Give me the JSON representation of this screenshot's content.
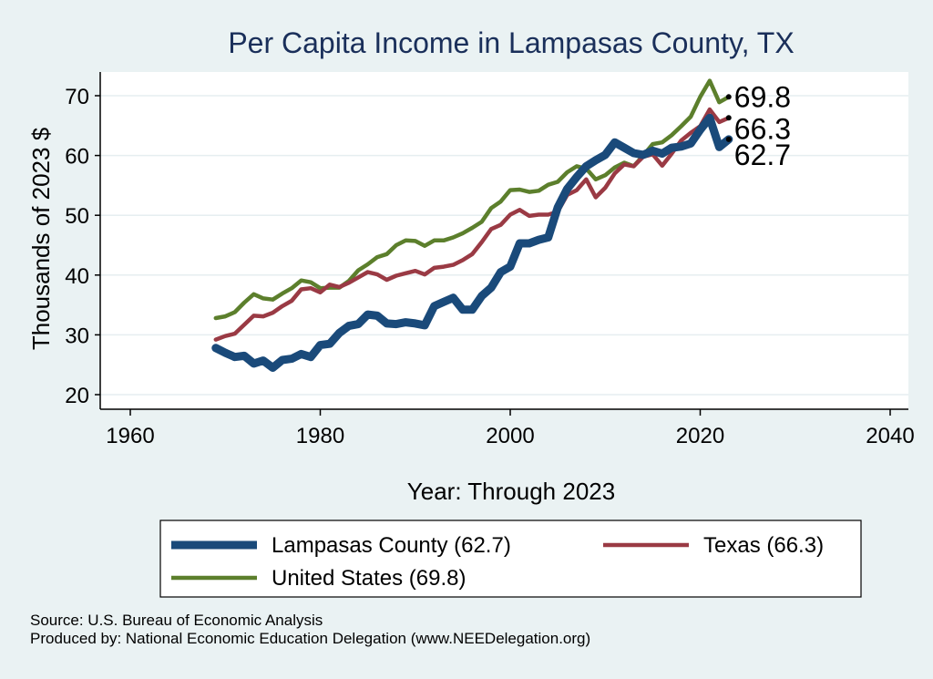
{
  "chart_data": {
    "type": "line",
    "title": "Per Capita Income in Lampasas County, TX",
    "xlabel": "Year: Through 2023",
    "ylabel": "Thousands of 2023 $",
    "xlim": [
      1960,
      2040
    ],
    "ylim": [
      20,
      75
    ],
    "xticks": [
      1960,
      1980,
      2000,
      2020,
      2040
    ],
    "yticks": [
      20,
      30,
      40,
      50,
      60,
      70
    ],
    "grid": true,
    "legend": "bottom",
    "x": [
      1969,
      1970,
      1971,
      1972,
      1973,
      1974,
      1975,
      1976,
      1977,
      1978,
      1979,
      1980,
      1981,
      1982,
      1983,
      1984,
      1985,
      1986,
      1987,
      1988,
      1989,
      1990,
      1991,
      1992,
      1993,
      1994,
      1995,
      1996,
      1997,
      1998,
      1999,
      2000,
      2001,
      2002,
      2003,
      2004,
      2005,
      2006,
      2007,
      2008,
      2009,
      2010,
      2011,
      2012,
      2013,
      2014,
      2015,
      2016,
      2017,
      2018,
      2019,
      2020,
      2021,
      2022,
      2023
    ],
    "series": [
      {
        "name": "Lampasas County (62.7)",
        "color": "#1a4a7a",
        "end_label": "62.7",
        "values": [
          27.8,
          27.0,
          26.3,
          26.5,
          25.2,
          25.7,
          24.5,
          25.8,
          26.0,
          26.8,
          26.3,
          28.3,
          28.5,
          30.3,
          31.5,
          31.8,
          33.4,
          33.2,
          31.9,
          31.8,
          32.1,
          31.9,
          31.6,
          34.8,
          35.5,
          36.2,
          34.2,
          34.2,
          36.5,
          37.9,
          40.5,
          41.4,
          45.3,
          45.3,
          45.9,
          46.3,
          51.3,
          54.4,
          56.4,
          58.2,
          59.2,
          60.1,
          62.2,
          61.3,
          60.4,
          60.1,
          60.8,
          60.3,
          61.3,
          61.5,
          62.0,
          64.3,
          66.3,
          61.4,
          62.7
        ]
      },
      {
        "name": "Texas (66.3)",
        "color": "#9a3a44",
        "end_label": "66.3",
        "values": [
          29.2,
          29.8,
          30.2,
          31.7,
          33.2,
          33.1,
          33.7,
          34.8,
          35.7,
          37.6,
          37.8,
          37.1,
          38.4,
          38.0,
          38.7,
          39.6,
          40.5,
          40.1,
          39.2,
          39.9,
          40.3,
          40.7,
          40.1,
          41.2,
          41.4,
          41.7,
          42.5,
          43.5,
          45.5,
          47.7,
          48.4,
          50.1,
          50.9,
          49.9,
          50.1,
          50.1,
          50.6,
          53.4,
          54.2,
          56.0,
          53.0,
          54.6,
          57.0,
          58.5,
          58.2,
          59.8,
          60.2,
          58.3,
          60.3,
          62.5,
          63.8,
          64.9,
          67.7,
          65.6,
          66.3
        ]
      },
      {
        "name": "United States (69.8)",
        "color": "#5c7f2c",
        "end_label": "69.8",
        "values": [
          32.8,
          33.1,
          33.8,
          35.4,
          36.8,
          36.1,
          35.9,
          36.9,
          37.8,
          39.1,
          38.8,
          37.8,
          37.9,
          37.9,
          39.0,
          40.8,
          41.8,
          43.0,
          43.5,
          45.0,
          45.8,
          45.7,
          44.9,
          45.8,
          45.8,
          46.3,
          47.0,
          47.9,
          48.9,
          51.2,
          52.3,
          54.2,
          54.3,
          53.9,
          54.1,
          55.1,
          55.6,
          57.2,
          58.2,
          57.8,
          56.0,
          56.7,
          58.0,
          58.8,
          58.2,
          60.0,
          61.9,
          62.2,
          63.4,
          64.9,
          66.5,
          69.8,
          72.5,
          68.9,
          69.8
        ]
      }
    ]
  },
  "legend": {
    "items": [
      {
        "label": "Lampasas County (62.7)",
        "color": "#1a4a7a"
      },
      {
        "label": "Texas (66.3)",
        "color": "#9a3a44"
      },
      {
        "label": "United States (69.8)",
        "color": "#5c7f2c"
      }
    ]
  },
  "source": {
    "line1": "Source: U.S. Bureau of Economic Analysis",
    "line2": "Produced by: National Economic Education Delegation (www.NEEDelegation.org)"
  }
}
